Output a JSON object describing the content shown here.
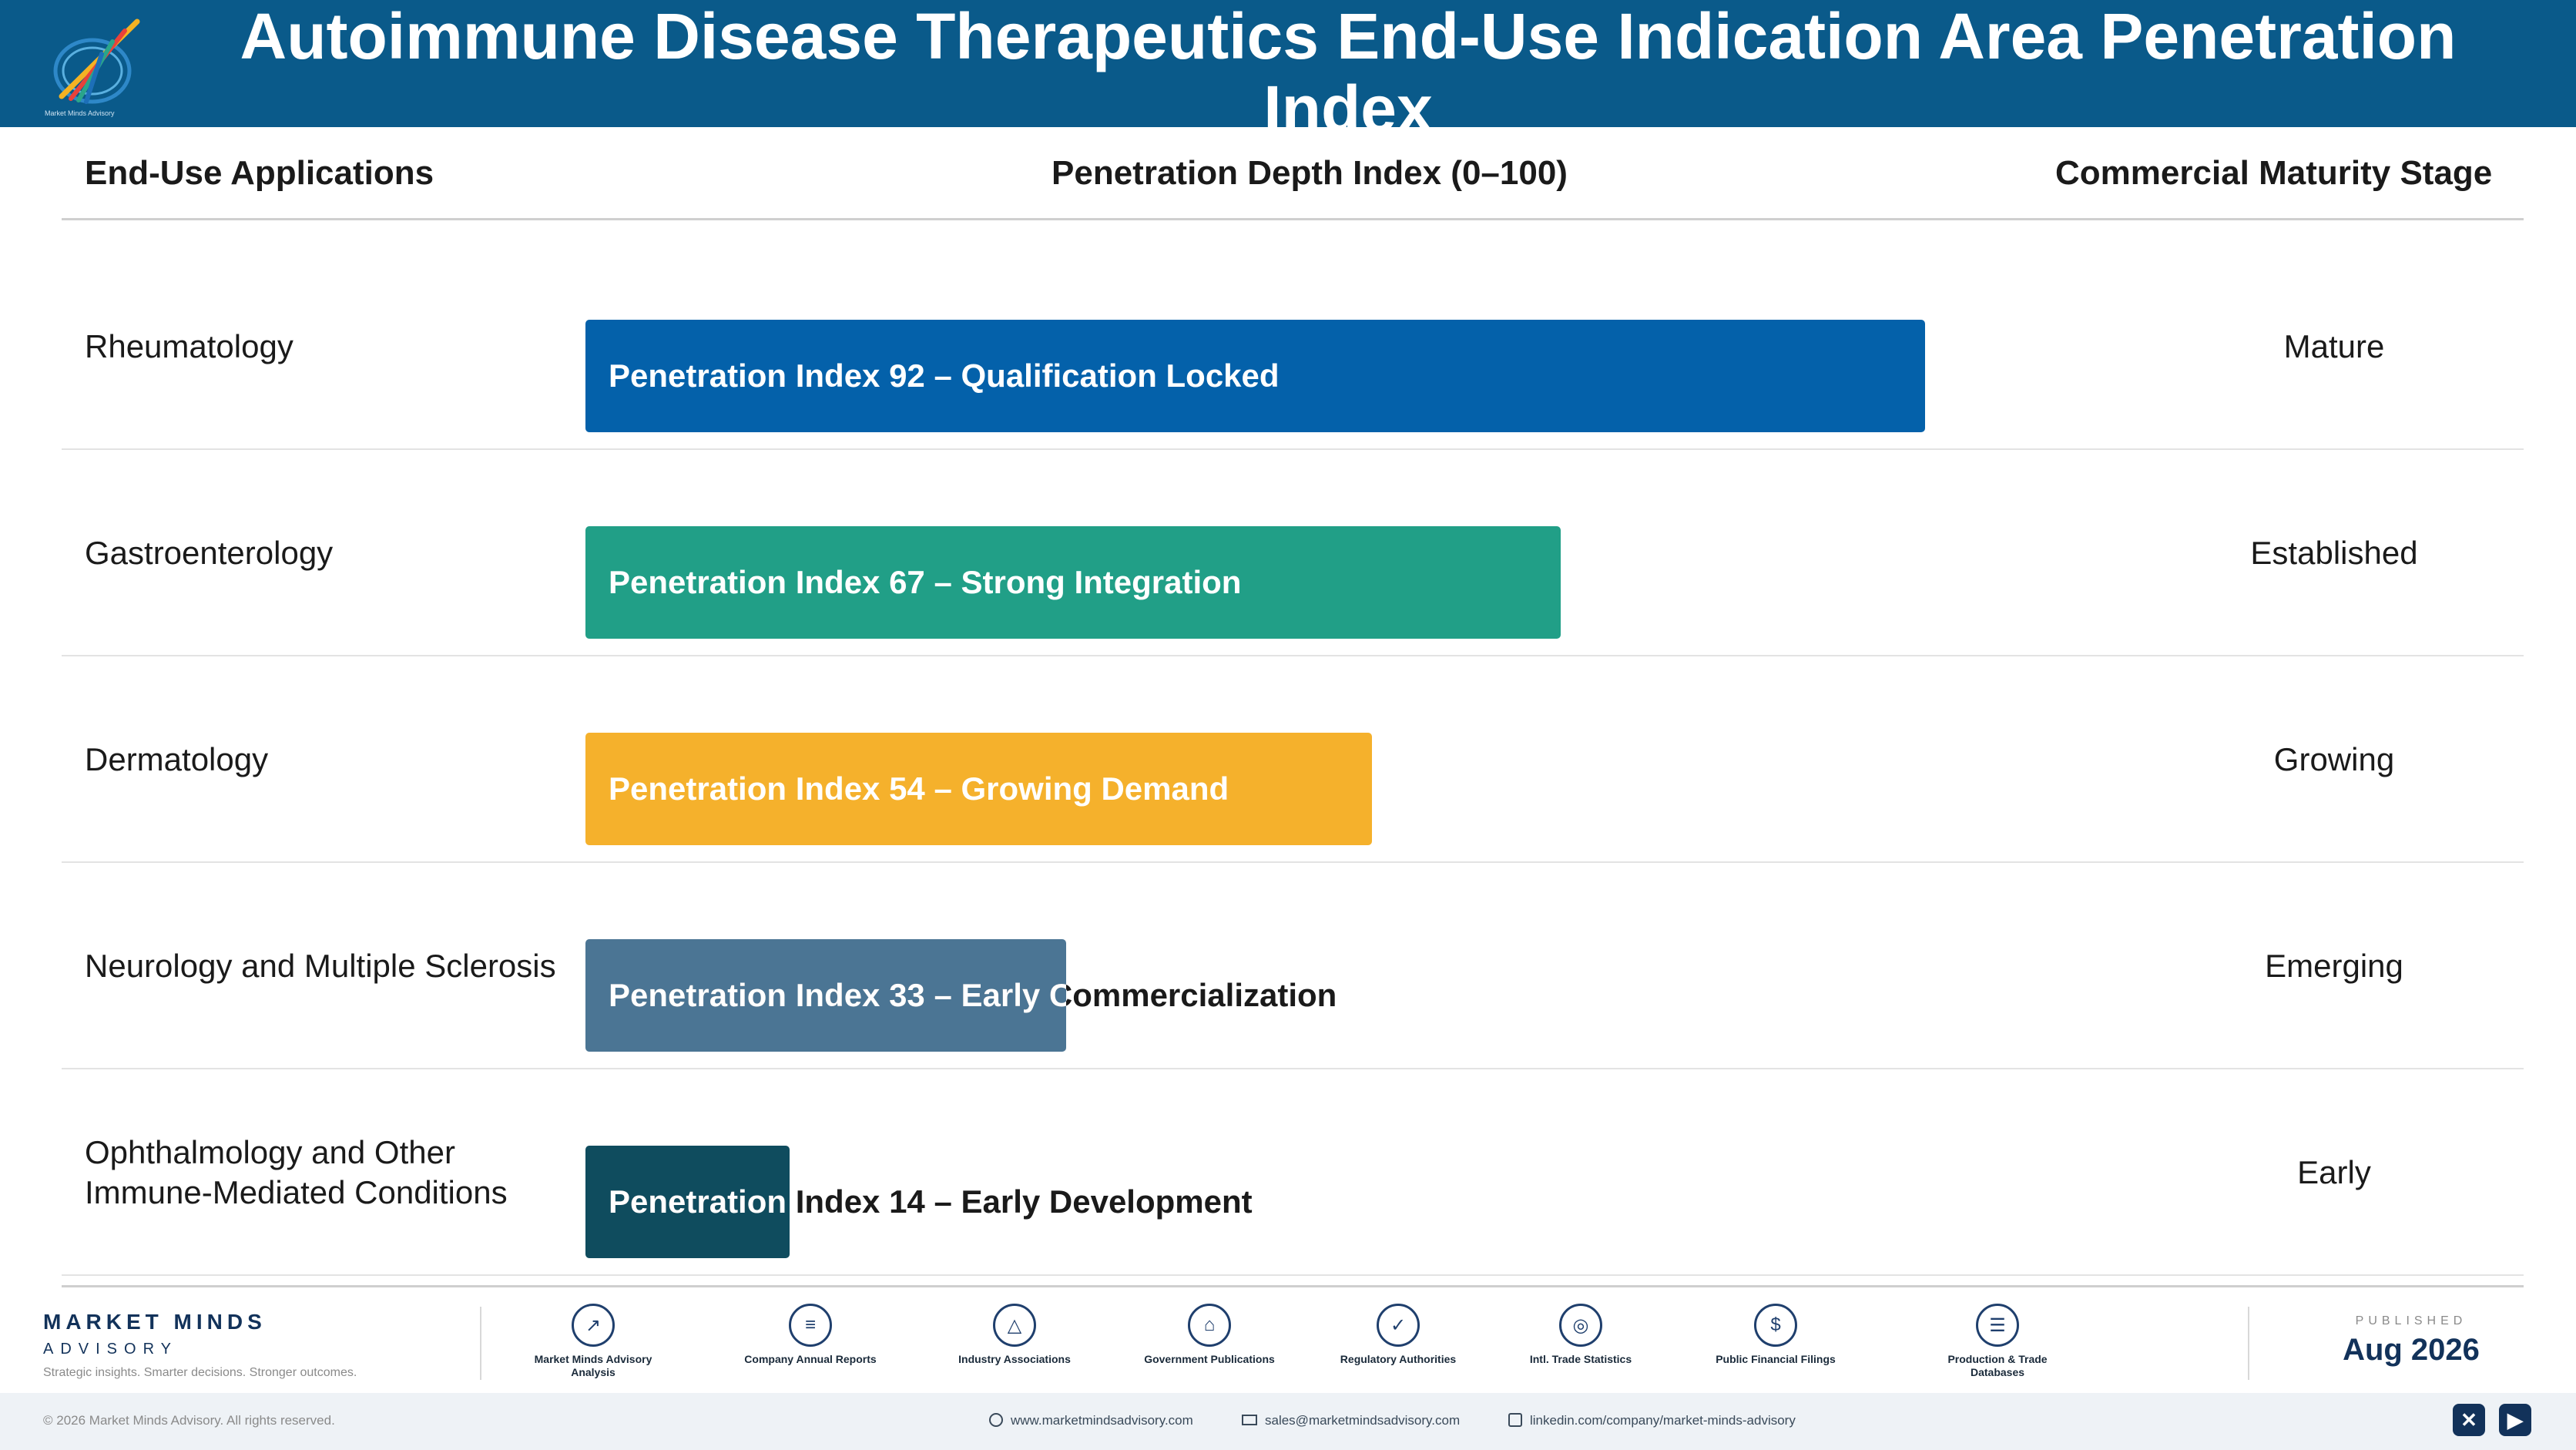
{
  "header": {
    "title": "Autoimmune Disease Therapeutics End-Use Indication Area Penetration Index",
    "logo_caption": "Market Minds Advisory"
  },
  "columns": {
    "applications": "End-Use Applications",
    "depth": "Penetration Depth Index (0–100)",
    "stage": "Commercial Maturity Stage"
  },
  "chart_data": {
    "type": "bar",
    "orientation": "horizontal",
    "xlim": [
      0,
      100
    ],
    "categories": [
      "Rheumatology",
      "Gastroenterology",
      "Dermatology",
      "Neurology and Multiple Sclerosis",
      "Ophthalmology and Other Immune-Mediated Conditions"
    ],
    "values": [
      92,
      67,
      54,
      33,
      14
    ],
    "bar_labels": [
      "Penetration Index 92 – Qualification Locked",
      "Penetration Index 67 – Strong Integration",
      "Penetration Index 54 – Growing Demand",
      "Penetration Index 33 – Early Commercialization",
      "Penetration Index 14 – Early Development"
    ],
    "stages": [
      "Mature",
      "Established",
      "Growing",
      "Emerging",
      "Early"
    ],
    "colors": [
      "#0461aa",
      "#219f87",
      "#f5b12c",
      "#4b7594",
      "#0f4c5e"
    ]
  },
  "footer": {
    "brand_line1": "MARKET MINDS",
    "brand_line2": "ADVISORY",
    "tagline": "Strategic insights. Smarter decisions. Stronger outcomes.",
    "sources": [
      {
        "label": "Market Minds Advisory Analysis",
        "icon": "chart-trend-icon"
      },
      {
        "label": "Company Annual Reports",
        "icon": "document-icon"
      },
      {
        "label": "Industry Associations",
        "icon": "network-icon"
      },
      {
        "label": "Government Publications",
        "icon": "government-building-icon"
      },
      {
        "label": "Regulatory Authorities",
        "icon": "shield-check-icon"
      },
      {
        "label": "Intl. Trade Statistics",
        "icon": "globe-icon"
      },
      {
        "label": "Public Financial Filings",
        "icon": "dollar-coin-icon"
      },
      {
        "label": "Production & Trade Databases",
        "icon": "database-icon"
      }
    ],
    "published_label": "PUBLISHED",
    "published_date": "Aug 2026",
    "copyright": "© 2026 Market Minds Advisory. All rights reserved.",
    "website": "www.marketmindsadvisory.com",
    "email": "sales@marketmindsadvisory.com",
    "linkedin": "linkedin.com/company/market-minds-advisory",
    "social": [
      "x-icon",
      "youtube-icon"
    ]
  }
}
